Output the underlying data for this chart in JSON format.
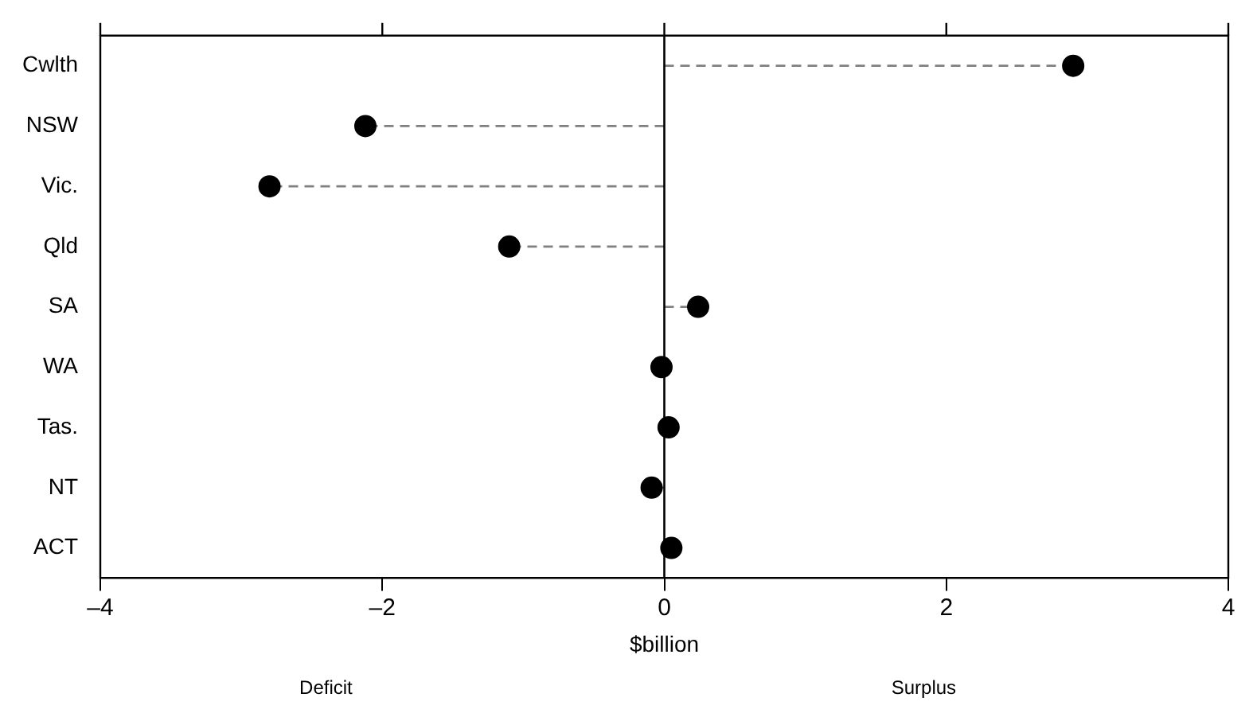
{
  "chart_data": {
    "type": "lollipop",
    "orientation": "horizontal",
    "xlabel": "$billion",
    "categories": [
      "Cwlth",
      "NSW",
      "Vic.",
      "Qld",
      "SA",
      "WA",
      "Tas.",
      "NT",
      "ACT"
    ],
    "values": [
      2.9,
      -2.12,
      -2.8,
      -1.1,
      0.24,
      -0.02,
      0.03,
      -0.09,
      0.05
    ],
    "color": "#000000",
    "line_style": "dashed",
    "marker": "circle",
    "xlim": [
      -4,
      4
    ],
    "xticks": [
      {
        "value": -4,
        "label": "–4"
      },
      {
        "value": -2,
        "label": "–2"
      },
      0,
      2,
      4
    ],
    "ref_lines": [
      {
        "axis": "x",
        "value": 0,
        "color": "#000000"
      }
    ],
    "annotations": [
      "Deficit",
      "Surplus"
    ],
    "grid": false,
    "legend": false
  }
}
